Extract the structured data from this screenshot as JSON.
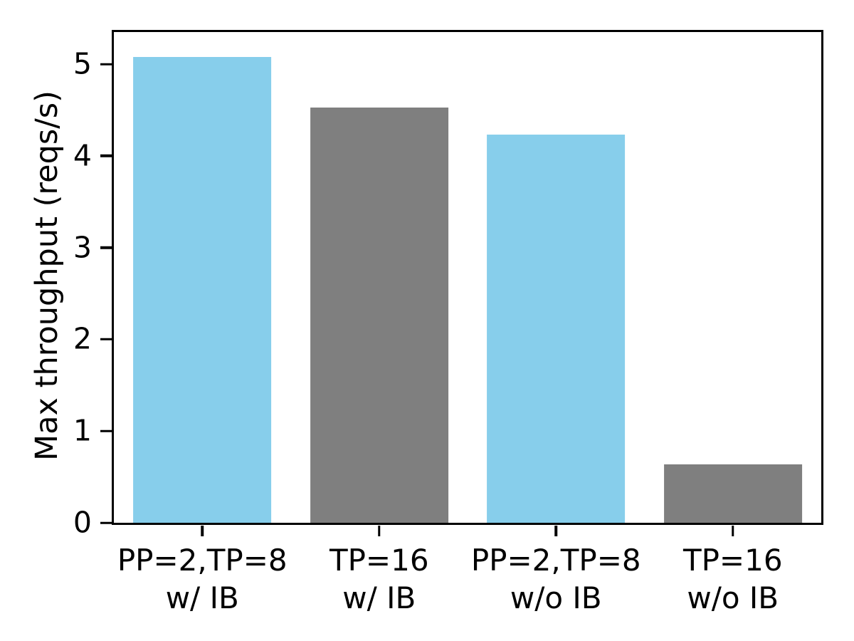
{
  "chart_data": {
    "type": "bar",
    "title": "",
    "xlabel": "",
    "ylabel": "Max throughput (reqs/s)",
    "categories": [
      "PP=2,TP=8\nw/ IB",
      "TP=16\nw/ IB",
      "PP=2,TP=8\nw/o IB",
      "TP=16\nw/o IB"
    ],
    "values": [
      5.08,
      4.53,
      4.23,
      0.64
    ],
    "bar_colors": [
      "#87CEEB",
      "#7f7f7f",
      "#87CEEB",
      "#7f7f7f"
    ],
    "yticks": [
      0,
      1,
      2,
      3,
      4,
      5
    ],
    "ylim": [
      0,
      5.35
    ],
    "bar_width_fraction": 0.78,
    "grid": false,
    "legend": null
  },
  "colors": {
    "skyblue": "#87CEEB",
    "gray": "#7f7f7f",
    "axis": "#000000",
    "background": "#ffffff"
  }
}
